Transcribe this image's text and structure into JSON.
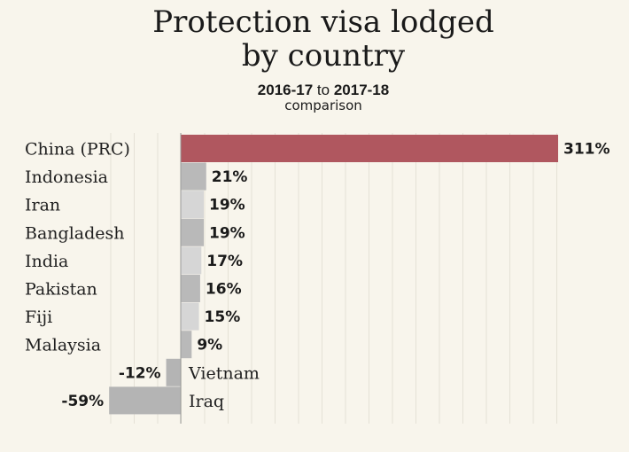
{
  "chart_data": {
    "type": "bar",
    "orientation": "horizontal",
    "title": "Protection visa lodged by country",
    "subtitle": {
      "from": "2016-17",
      "joiner": "to",
      "to": "2017-18",
      "line2": "comparison"
    },
    "categories": [
      "China (PRC)",
      "Indonesia",
      "Iran",
      "Bangladesh",
      "India",
      "Pakistan",
      "Fiji",
      "Malaysia",
      "Vietnam",
      "Iraq"
    ],
    "values": [
      311,
      21,
      19,
      19,
      17,
      16,
      15,
      9,
      -12,
      -59
    ],
    "value_labels": [
      "311%",
      "21%",
      "19%",
      "19%",
      "17%",
      "16%",
      "15%",
      "9%",
      "-12%",
      "-59%"
    ],
    "xlabel": "",
    "ylabel": "",
    "unit": "%",
    "xlim": [
      -60,
      315
    ],
    "grid": true,
    "legend": "none",
    "colors": {
      "highlight": "#b0575f",
      "bar_dark": "#b9b9b9",
      "bar_light": "#d6d6d6",
      "negative": "#b4b4b4",
      "grid": "#e5e1d6",
      "axis": "#9a9a9a"
    }
  }
}
